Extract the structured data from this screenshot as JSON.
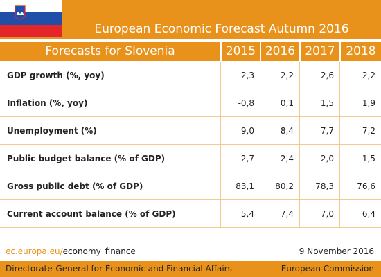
{
  "header": {
    "title": "European Economic Forecast Autumn 2016"
  },
  "table": {
    "header": [
      "Forecasts for Slovenia",
      "2015",
      "2016",
      "2017",
      "2018"
    ],
    "rows": [
      [
        "GDP growth (%, yoy)",
        "2,3",
        "2,2",
        "2,6",
        "2,2"
      ],
      [
        "Inflation (%, yoy)",
        "-0,8",
        "0,1",
        "1,5",
        "1,9"
      ],
      [
        "Unemployment (%)",
        "9,0",
        "8,4",
        "7,7",
        "7,2"
      ],
      [
        "Public budget balance (% of GDP)",
        "-2,7",
        "-2,4",
        "-2,0",
        "-1,5"
      ],
      [
        "Gross public debt (% of GDP)",
        "83,1",
        "80,2",
        "78,3",
        "76,6"
      ],
      [
        "Current account balance (% of GDP)",
        "5,4",
        "7,4",
        "7,0",
        "6,4"
      ]
    ]
  },
  "footer": {
    "link_domain": "ec.europa.eu/",
    "link_path": "economy_finance",
    "date": "9 November 2016",
    "left": "Directorate-General for Economic and Financial Affairs",
    "right": "European Commission"
  }
}
